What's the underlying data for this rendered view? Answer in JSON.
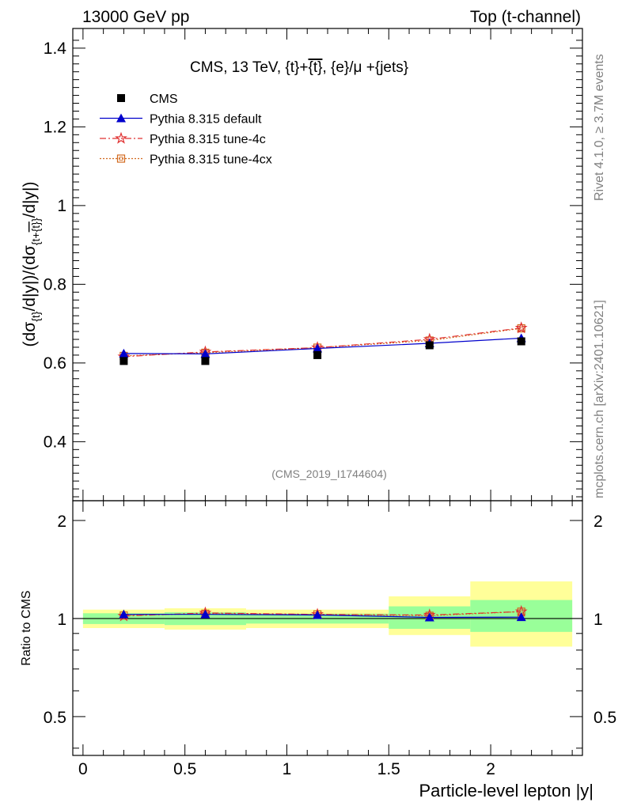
{
  "header": {
    "left": "13000 GeV pp",
    "right": "Top (t-channel)"
  },
  "side_labels": {
    "rivet": "Rivet 4.1.0, ≥ 3.7M events",
    "mcplots": "mcplots.cern.ch [arXiv:2401.10621]"
  },
  "colors": {
    "cms": "#000000",
    "default": "#0000cc",
    "tune4c": "#e03030",
    "tune4cx": "#d2691e",
    "band_inner": "#99ff99",
    "band_outer": "#ffff99"
  },
  "chart_data": [
    {
      "type": "line",
      "title": "CMS, 13 TeV, {t}+{t̄}, {e}/μ +{jets}",
      "title_parts": {
        "main": "CMS, 13 TeV, {t}+",
        "overlined": "{t}",
        "rest": ", {e}/μ +{jets}"
      },
      "xlabel": "Particle-level lepton |y|",
      "ylabel": "(dσ_{t}/d|y|)/(dσ_{t+t̄}/d|y|)",
      "ylabel_parts": {
        "a": "(dσ",
        "a_sub": "{t}",
        "b": "/d|y|)/(dσ",
        "b_sub": "{t+",
        "b_sub_over": "{t}",
        "b_sub_end": "}",
        "c": "/d|y|)"
      },
      "xlim": [
        -0.05,
        2.45
      ],
      "ylim": [
        0.25,
        1.45
      ],
      "x_ticks": [
        "0",
        "0.5",
        "1",
        "1.5",
        "2"
      ],
      "y_ticks": [
        "0.4",
        "0.6",
        "0.8",
        "1",
        "1.2",
        "1.4"
      ],
      "watermark": "(CMS_2019_I1744604)",
      "legend": [
        {
          "key": "cms",
          "label": "CMS"
        },
        {
          "key": "default",
          "label": "Pythia 8.315 default"
        },
        {
          "key": "tune4c",
          "label": "Pythia 8.315 tune-4c"
        },
        {
          "key": "tune4cx",
          "label": "Pythia 8.315 tune-4cx"
        }
      ],
      "bins": [
        [
          0.0,
          0.4
        ],
        [
          0.4,
          0.8
        ],
        [
          0.8,
          1.5
        ],
        [
          1.5,
          1.9
        ],
        [
          1.9,
          2.4
        ]
      ],
      "x": [
        0.2,
        0.6,
        1.15,
        1.7,
        2.15
      ],
      "series": [
        {
          "key": "cms",
          "name": "CMS",
          "values": [
            0.605,
            0.605,
            0.62,
            0.645,
            0.655
          ]
        },
        {
          "key": "default",
          "name": "Pythia 8.315 default",
          "values": [
            0.624,
            0.623,
            0.637,
            0.65,
            0.663
          ]
        },
        {
          "key": "tune4c",
          "name": "Pythia 8.315 tune-4c",
          "values": [
            0.616,
            0.628,
            0.639,
            0.66,
            0.689
          ]
        },
        {
          "key": "tune4cx",
          "name": "Pythia 8.315 tune-4cx",
          "values": [
            0.618,
            0.626,
            0.639,
            0.657,
            0.688
          ]
        }
      ]
    },
    {
      "type": "line",
      "ylabel": "Ratio to CMS",
      "xlim": [
        -0.05,
        2.45
      ],
      "ylim": [
        0.38,
        2.3
      ],
      "log_y": true,
      "y_ticks": [
        "0.5",
        "1",
        "2"
      ],
      "x": [
        0.2,
        0.6,
        1.15,
        1.7,
        2.15
      ],
      "bands": {
        "inner": [
          [
            0.962,
            1.038
          ],
          [
            0.955,
            1.045
          ],
          [
            0.965,
            1.035
          ],
          [
            0.93,
            1.09
          ],
          [
            0.91,
            1.14
          ]
        ],
        "outer": [
          [
            0.935,
            1.065
          ],
          [
            0.925,
            1.075
          ],
          [
            0.935,
            1.065
          ],
          [
            0.89,
            1.17
          ],
          [
            0.82,
            1.3
          ]
        ]
      },
      "series": [
        {
          "key": "default",
          "name": "Pythia 8.315 default",
          "values": [
            1.03,
            1.03,
            1.025,
            1.008,
            1.01
          ]
        },
        {
          "key": "tune4c",
          "name": "Pythia 8.315 tune-4c",
          "values": [
            1.018,
            1.04,
            1.03,
            1.025,
            1.05
          ]
        },
        {
          "key": "tune4cx",
          "name": "Pythia 8.315 tune-4cx",
          "values": [
            1.022,
            1.035,
            1.03,
            1.02,
            1.05
          ]
        }
      ]
    }
  ]
}
